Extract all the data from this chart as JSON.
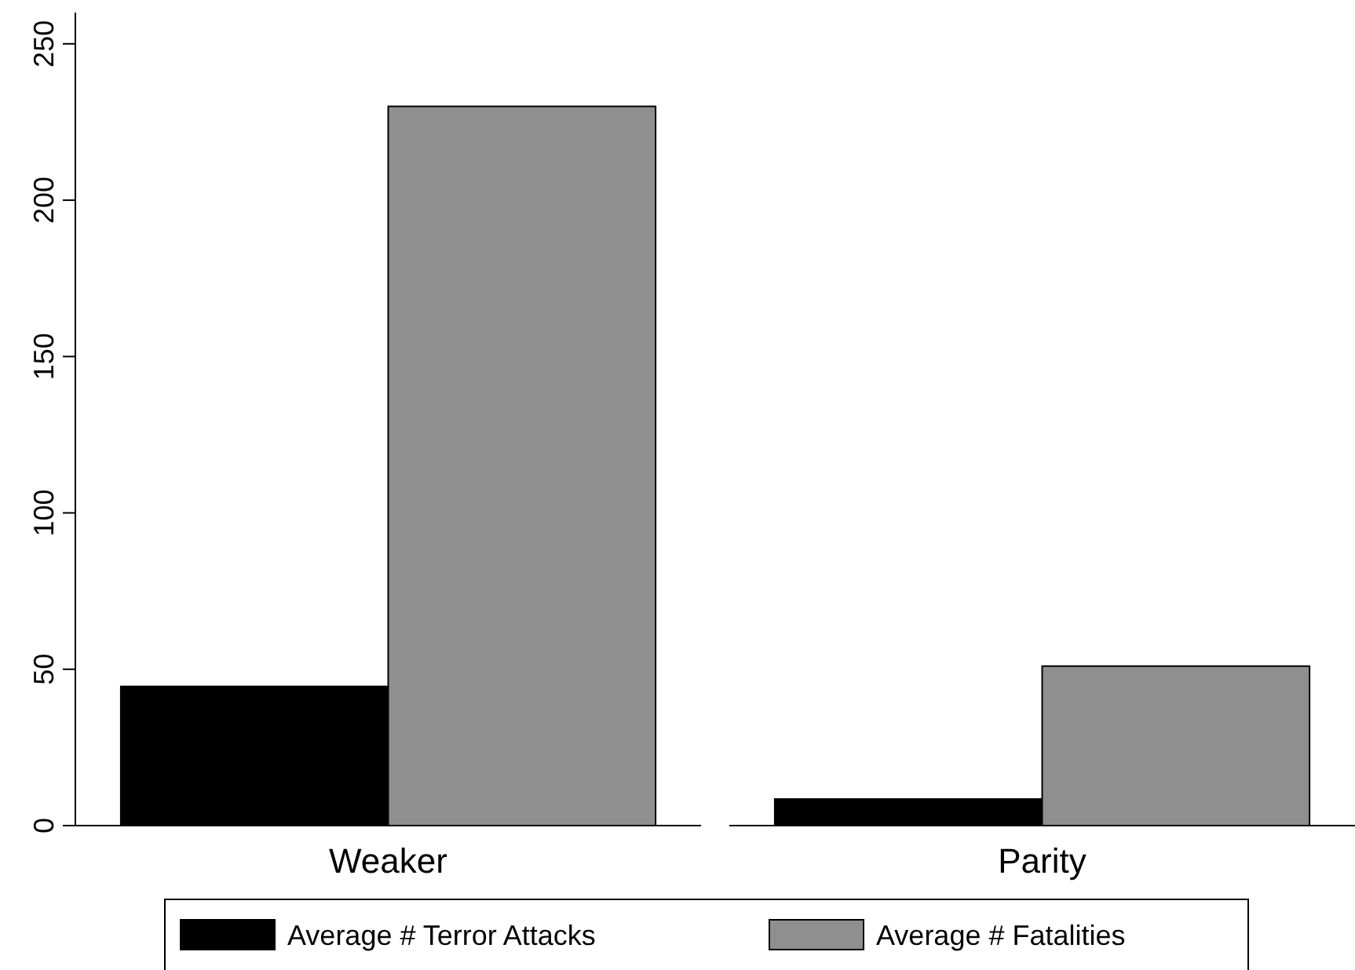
{
  "chart_data": {
    "type": "bar",
    "categories": [
      "Weaker",
      "Parity"
    ],
    "series": [
      {
        "name": "Average # Terror Attacks",
        "color": "#000000",
        "values": [
          44.5,
          8.5
        ]
      },
      {
        "name": "Average # Fatalities",
        "color": "#8f8f8f",
        "values": [
          230,
          51
        ]
      }
    ],
    "ylim": [
      0,
      260
    ],
    "yticks": [
      0,
      50,
      100,
      150,
      200,
      250
    ],
    "grid": false,
    "legend": "bottom"
  }
}
